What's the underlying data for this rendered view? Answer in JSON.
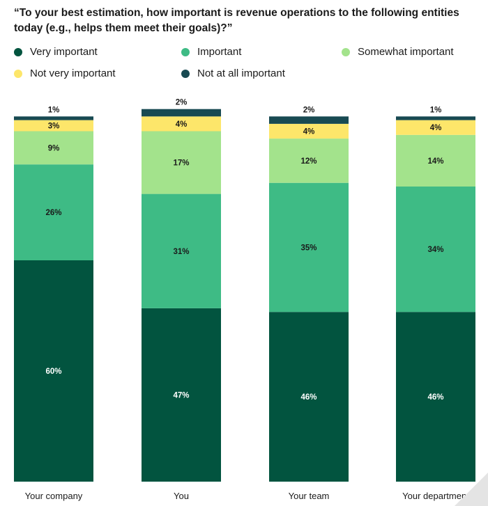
{
  "title": "“To your best estimation, how important is revenue operations to the following entities today (e.g., helps them meet their goals)?”",
  "chart_data": {
    "type": "bar",
    "stacked": true,
    "title": "“To your best estimation, how important is revenue operations to the following entities today (e.g., helps them meet their goals)?”",
    "categories": [
      "Your company",
      "You",
      "Your team",
      "Your department"
    ],
    "series": [
      {
        "name": "Very important",
        "color": "#02543f",
        "values": [
          60,
          47,
          46,
          46
        ],
        "labels": [
          "60%",
          "47%",
          "46%",
          "46%"
        ],
        "label_color": "#ffffff"
      },
      {
        "name": "Important",
        "color": "#3ebb85",
        "values": [
          26,
          31,
          35,
          34
        ],
        "labels": [
          "26%",
          "31%",
          "35%",
          "34%"
        ],
        "label_color": "#1a1a1a"
      },
      {
        "name": "Somewhat important",
        "color": "#a3e38c",
        "values": [
          9,
          17,
          12,
          14
        ],
        "labels": [
          "9%",
          "17%",
          "12%",
          "14%"
        ],
        "label_color": "#1a1a1a"
      },
      {
        "name": "Not very important",
        "color": "#fde66a",
        "values": [
          3,
          4,
          4,
          4
        ],
        "labels": [
          "3%",
          "4%",
          "4%",
          "4%"
        ],
        "label_color": "#1a1a1a"
      },
      {
        "name": "Not at all important",
        "color": "#184a52",
        "values": [
          1,
          2,
          2,
          1
        ],
        "labels": [
          "1%",
          "2%",
          "2%",
          "1%"
        ],
        "label_color": "#1a1a1a"
      }
    ],
    "ylim": [
      0,
      100
    ],
    "grid": false,
    "legend_position": "top-left"
  }
}
